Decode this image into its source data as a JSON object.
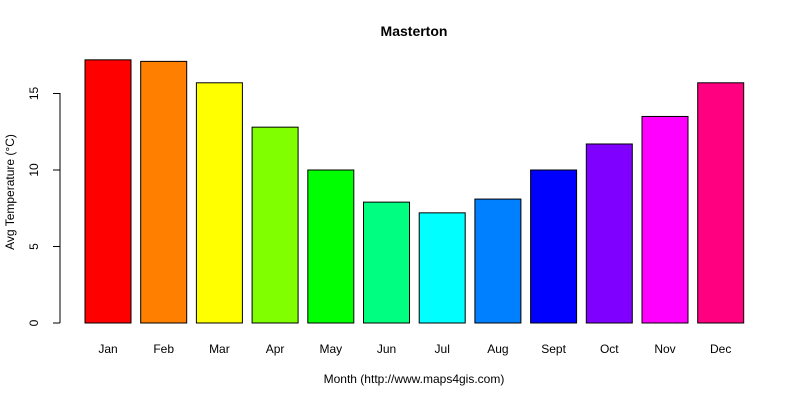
{
  "chart_data": {
    "type": "bar",
    "title": "Masterton",
    "xlabel": "Month (http://www.maps4gis.com)",
    "ylabel": "Avg Temperature (°C)",
    "categories": [
      "Jan",
      "Feb",
      "Mar",
      "Apr",
      "May",
      "Jun",
      "Jul",
      "Aug",
      "Sept",
      "Oct",
      "Nov",
      "Dec"
    ],
    "values": [
      17.2,
      17.1,
      15.7,
      12.8,
      10.0,
      7.9,
      7.2,
      8.1,
      10.0,
      11.7,
      13.5,
      15.7
    ],
    "colors": [
      "#ff0000",
      "#ff8000",
      "#ffff00",
      "#80ff00",
      "#00ff00",
      "#00ff80",
      "#00ffff",
      "#0080ff",
      "#0000ff",
      "#8000ff",
      "#ff00ff",
      "#ff0080"
    ],
    "ylim": [
      0,
      17.2
    ],
    "yticks": [
      0,
      5,
      10,
      15
    ],
    "grid": false,
    "legend": "none"
  }
}
